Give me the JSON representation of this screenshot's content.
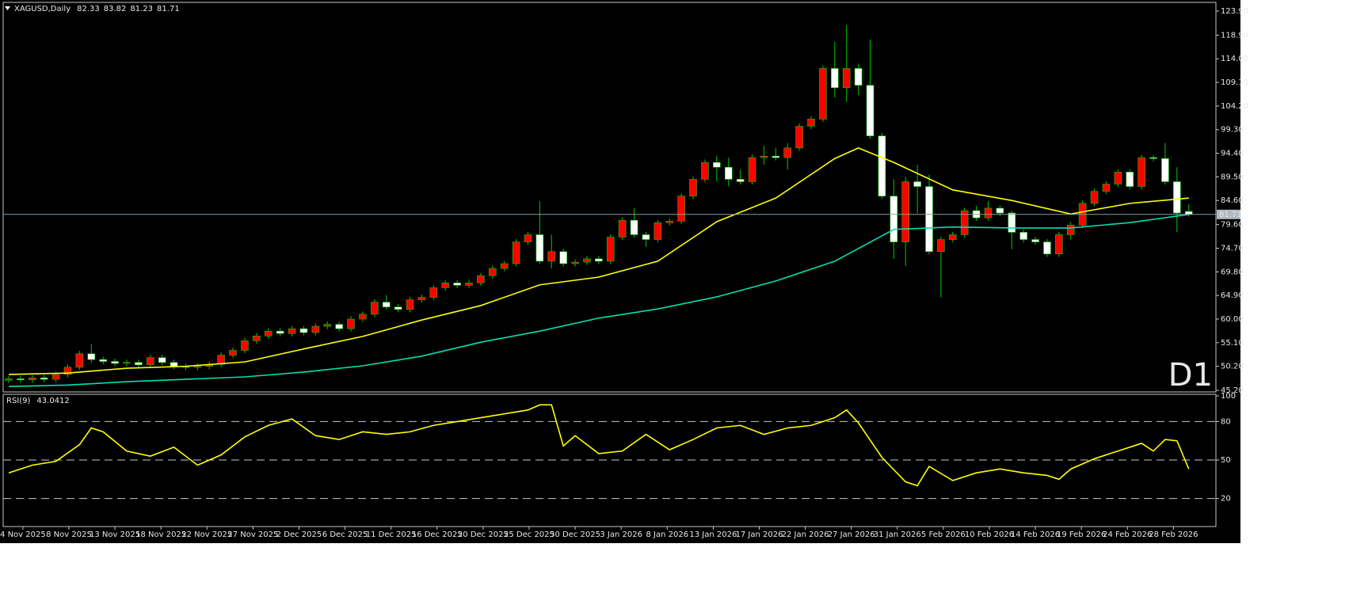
{
  "chart_data": [
    {
      "type": "candlestick",
      "title": "XAGUSD,Daily",
      "annotation": "D1",
      "up_color": "#ff0000",
      "down_color": "#ffffff",
      "wick_color": "#00c800",
      "price_line_color": "#8a9aa8",
      "annotation_color": "#e00000",
      "open": [
        47.3,
        47.6,
        47.4,
        47.8,
        47.5,
        48.5,
        50.0,
        52.8,
        51.6,
        51.2,
        50.8,
        51.0,
        50.5,
        52.0,
        51.0,
        50.2,
        50.0,
        50.2,
        50.6,
        52.5,
        53.5,
        55.5,
        56.5,
        57.5,
        57.0,
        58.0,
        57.2,
        58.5,
        58.9,
        58.0,
        60.0,
        61.0,
        63.5,
        62.5,
        62.0,
        64.0,
        64.5,
        66.5,
        67.5,
        67.0,
        67.5,
        69.0,
        70.5,
        71.5,
        76.0,
        77.5,
        72.0,
        74.0,
        71.5,
        71.8,
        72.5,
        72.0,
        77.0,
        80.5,
        77.5,
        76.5,
        80.0,
        80.3,
        85.5,
        89.0,
        92.5,
        91.5,
        89.0,
        88.5,
        93.5,
        93.8,
        93.5,
        95.5,
        100.0,
        101.5,
        112.0,
        108.0,
        112.0,
        108.5,
        98.0,
        85.5,
        76.0,
        88.5,
        87.5,
        74.0,
        76.5,
        77.5,
        82.5,
        81.0,
        83.0,
        82.0,
        78.0,
        76.5,
        76.0,
        73.5,
        77.5,
        79.5,
        84.0,
        86.5,
        88.0,
        90.5,
        87.5,
        93.5,
        93.3,
        88.5,
        82.33
      ],
      "high": [
        48.2,
        48.2,
        48.4,
        48.4,
        49.1,
        50.6,
        53.4,
        54.8,
        52.2,
        51.8,
        51.6,
        51.6,
        52.6,
        52.6,
        51.6,
        50.8,
        50.8,
        51.2,
        53.1,
        54.1,
        56.1,
        57.1,
        58.1,
        58.1,
        58.6,
        58.6,
        59.1,
        59.5,
        59.5,
        60.6,
        61.6,
        64.1,
        65.0,
        63.1,
        64.6,
        65.1,
        67.1,
        68.1,
        68.1,
        68.1,
        69.6,
        71.1,
        72.1,
        76.6,
        78.1,
        84.5,
        77.5,
        74.6,
        72.4,
        73.1,
        73.1,
        77.6,
        81.1,
        83.0,
        78.1,
        80.6,
        80.9,
        86.1,
        89.6,
        93.1,
        93.9,
        93.5,
        91.0,
        94.1,
        96.0,
        95.5,
        96.5,
        100.6,
        102.1,
        112.6,
        117.5,
        121.0,
        113.0,
        118.0,
        98.6,
        89.0,
        89.5,
        92.0,
        90.0,
        77.1,
        78.1,
        83.1,
        83.5,
        84.5,
        83.6,
        82.6,
        78.6,
        77.1,
        76.6,
        78.1,
        80.1,
        84.6,
        87.1,
        88.6,
        91.1,
        91.1,
        94.1,
        94.0,
        96.5,
        91.5,
        83.82
      ],
      "low": [
        46.7,
        46.8,
        46.8,
        46.9,
        46.9,
        47.9,
        49.4,
        51.0,
        50.6,
        50.2,
        50.2,
        49.9,
        49.9,
        50.4,
        49.6,
        49.4,
        49.4,
        49.6,
        50.0,
        51.9,
        52.9,
        54.9,
        55.9,
        56.4,
        56.4,
        56.6,
        56.6,
        57.9,
        57.4,
        57.4,
        59.4,
        60.4,
        61.9,
        61.4,
        61.4,
        63.4,
        63.9,
        65.9,
        66.4,
        66.4,
        66.9,
        68.4,
        69.9,
        70.9,
        75.4,
        71.4,
        70.5,
        70.9,
        70.9,
        71.2,
        71.4,
        71.4,
        76.4,
        76.9,
        75.0,
        75.9,
        79.4,
        79.7,
        84.9,
        88.4,
        88.5,
        87.5,
        87.9,
        87.9,
        92.0,
        92.9,
        91.0,
        94.9,
        99.4,
        100.9,
        106.0,
        105.0,
        106.5,
        97.4,
        84.9,
        72.5,
        71.0,
        82.0,
        73.4,
        64.5,
        75.9,
        76.9,
        80.4,
        80.4,
        81.4,
        74.5,
        75.9,
        75.4,
        72.9,
        72.9,
        76.5,
        78.9,
        83.4,
        85.9,
        87.4,
        86.9,
        86.9,
        92.7,
        87.9,
        78.0,
        81.23
      ],
      "close": [
        47.6,
        47.4,
        47.8,
        47.5,
        48.5,
        50.0,
        52.8,
        51.6,
        51.2,
        50.8,
        51.0,
        50.5,
        52.0,
        51.0,
        50.2,
        50.0,
        50.2,
        50.6,
        52.5,
        53.5,
        55.5,
        56.5,
        57.5,
        57.0,
        58.0,
        57.2,
        58.5,
        58.9,
        58.0,
        60.0,
        61.0,
        63.5,
        62.5,
        62.0,
        64.0,
        64.5,
        66.5,
        67.5,
        67.0,
        67.5,
        69.0,
        70.5,
        71.5,
        76.0,
        77.5,
        72.0,
        74.0,
        71.5,
        71.8,
        72.5,
        72.0,
        77.0,
        80.5,
        77.5,
        76.5,
        80.0,
        80.3,
        85.5,
        89.0,
        92.5,
        91.5,
        89.0,
        88.5,
        93.5,
        93.8,
        93.5,
        95.5,
        100.0,
        101.5,
        112.0,
        108.0,
        112.0,
        108.5,
        98.0,
        85.5,
        76.0,
        88.5,
        87.5,
        74.0,
        76.5,
        77.5,
        82.5,
        81.0,
        83.0,
        82.0,
        78.0,
        76.5,
        76.0,
        73.5,
        77.5,
        79.5,
        84.0,
        86.5,
        88.0,
        90.5,
        87.5,
        93.5,
        93.3,
        88.5,
        82.0,
        81.71
      ],
      "series": [
        {
          "color": "#ffff00",
          "x": [
            0,
            5,
            10,
            15,
            20,
            25,
            30,
            35,
            40,
            45,
            50,
            55,
            60,
            65,
            70,
            72,
            75,
            80,
            85,
            90,
            95,
            100
          ],
          "values": [
            48.5,
            48.8,
            49.8,
            50.2,
            51.1,
            53.8,
            56.4,
            59.8,
            62.8,
            67.1,
            68.7,
            72.0,
            80.2,
            85.1,
            93.3,
            95.5,
            92.5,
            86.8,
            84.6,
            81.8,
            84.0,
            85.1
          ]
        },
        {
          "color": "#00e0b0",
          "x": [
            0,
            5,
            10,
            15,
            20,
            25,
            30,
            35,
            40,
            45,
            50,
            55,
            60,
            65,
            70,
            75,
            80,
            85,
            90,
            95,
            100
          ],
          "values": [
            46.0,
            46.3,
            47.0,
            47.5,
            48.0,
            49.0,
            50.3,
            52.3,
            55.2,
            57.5,
            60.2,
            62.1,
            64.6,
            67.9,
            72.0,
            78.6,
            79.1,
            78.9,
            78.9,
            80.0,
            81.7
          ]
        }
      ],
      "xlim": [
        -0.47,
        102.3
      ],
      "ylim": [
        44.88,
        125.54
      ],
      "yticks": [
        {
          "value": 123.9,
          "label": "123.90"
        },
        {
          "value": 118.9,
          "label": "118.90"
        },
        {
          "value": 114.0,
          "label": "114.00"
        },
        {
          "value": 109.1,
          "label": "109.10"
        },
        {
          "value": 104.2,
          "label": "104.20"
        },
        {
          "value": 99.3,
          "label": "99.30"
        },
        {
          "value": 94.4,
          "label": "94.40"
        },
        {
          "value": 89.5,
          "label": "89.50"
        },
        {
          "value": 84.6,
          "label": "84.60"
        },
        {
          "value": 79.6,
          "label": "79.60"
        },
        {
          "value": 74.7,
          "label": "74.70"
        },
        {
          "value": 69.8,
          "label": "69.80"
        },
        {
          "value": 64.9,
          "label": "64.90"
        },
        {
          "value": 60.0,
          "label": "60.00"
        },
        {
          "value": 55.1,
          "label": "55.10"
        },
        {
          "value": 50.2,
          "label": "50.20"
        },
        {
          "value": 45.2,
          "label": "45.20"
        }
      ],
      "xticks": [
        {
          "value": 1.2,
          "label": "4 Nov 2025"
        },
        {
          "value": 5.1,
          "label": "8 Nov 2025"
        },
        {
          "value": 9.0,
          "label": "13 Nov 2025"
        },
        {
          "value": 12.9,
          "label": "18 Nov 2025"
        },
        {
          "value": 16.8,
          "label": "22 Nov 2025"
        },
        {
          "value": 20.7,
          "label": "27 Nov 2025"
        },
        {
          "value": 24.6,
          "label": "2 Dec 2025"
        },
        {
          "value": 28.5,
          "label": "6 Dec 2025"
        },
        {
          "value": 32.4,
          "label": "11 Dec 2025"
        },
        {
          "value": 36.3,
          "label": "16 Dec 2025"
        },
        {
          "value": 40.2,
          "label": "20 Dec 2025"
        },
        {
          "value": 44.1,
          "label": "25 Dec 2025"
        },
        {
          "value": 48.0,
          "label": "30 Dec 2025"
        },
        {
          "value": 51.9,
          "label": "3 Jan 2026"
        },
        {
          "value": 55.8,
          "label": "8 Jan 2026"
        },
        {
          "value": 59.7,
          "label": "13 Jan 2026"
        },
        {
          "value": 63.6,
          "label": "17 Jan 2026"
        },
        {
          "value": 67.5,
          "label": "22 Jan 2026"
        },
        {
          "value": 71.4,
          "label": "27 Jan 2026"
        },
        {
          "value": 75.3,
          "label": "31 Jan 2026"
        },
        {
          "value": 79.2,
          "label": "5 Feb 2026"
        },
        {
          "value": 83.1,
          "label": "10 Feb 2026"
        },
        {
          "value": 87.0,
          "label": "14 Feb 2026"
        },
        {
          "value": 90.9,
          "label": "19 Feb 2026"
        },
        {
          "value": 94.8,
          "label": "24 Feb 2026"
        },
        {
          "value": 98.7,
          "label": "28 Feb 2026"
        }
      ],
      "grid": false
    },
    {
      "type": "line",
      "title": "RSI(9)",
      "color": "#ffff00",
      "x": [
        0,
        2,
        4,
        6,
        7,
        8,
        10,
        12,
        14,
        16,
        18,
        20,
        22,
        24,
        26,
        28,
        30,
        32,
        34,
        36,
        38,
        40,
        42,
        44,
        45,
        46,
        47,
        48,
        50,
        52,
        54,
        56,
        58,
        60,
        62,
        64,
        66,
        68,
        70,
        71,
        72,
        74,
        76,
        77,
        78,
        80,
        82,
        84,
        86,
        88,
        89,
        90,
        92,
        94,
        96,
        97,
        98,
        99,
        100
      ],
      "values": [
        40,
        46,
        49,
        62,
        75,
        72,
        57,
        53,
        60,
        46,
        54,
        68,
        77,
        82,
        69,
        66,
        72,
        70,
        72,
        77,
        80,
        83,
        86,
        89,
        93,
        93,
        61,
        69,
        55,
        57,
        70,
        58,
        66,
        75,
        77,
        70,
        75,
        77,
        83,
        89,
        79,
        52,
        33,
        30,
        45,
        34,
        40,
        43,
        40,
        38,
        35,
        43,
        51,
        57,
        63,
        57,
        66,
        65,
        43.0412
      ],
      "xlim": [
        -0.47,
        102.3
      ],
      "ylim": [
        0,
        100
      ],
      "yticks": [
        20,
        50,
        80,
        100
      ],
      "grid": true
    }
  ]
}
